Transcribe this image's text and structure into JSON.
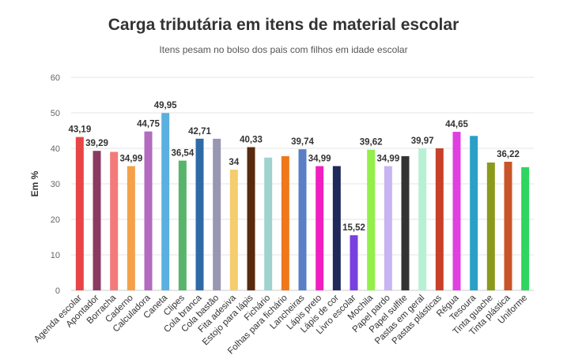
{
  "chart_data": {
    "type": "bar",
    "title": "Carga tributária em itens de material escolar",
    "subtitle": "Itens pesam no bolso dos pais com filhos em idade escolar",
    "xlabel": "",
    "ylabel": "Em %",
    "ylim": [
      0,
      60
    ],
    "yticks": [
      0,
      10,
      20,
      30,
      40,
      50,
      60
    ],
    "grid": true,
    "categories": [
      "Agenda escolar",
      "Apontador",
      "Borracha",
      "Caderno",
      "Calculadora",
      "Caneta",
      "Clipes",
      "Cola branca",
      "Cola bastão",
      "Fita adesiva",
      "Estojo para lápis",
      "Fichário",
      "Folhas para fichário",
      "Lancheiras",
      "Lápis preto",
      "Lápis de cor",
      "Livro escolar",
      "Mochila",
      "Papel pardo",
      "Papel sulfite",
      "Pastas em geral",
      "Pastas plásticas",
      "Régua",
      "Tesoura",
      "Tinta guache",
      "Tinta plástica",
      "Uniforme"
    ],
    "values": [
      43.19,
      39.29,
      39.0,
      34.99,
      44.75,
      49.95,
      36.54,
      42.71,
      42.7,
      34,
      40.33,
      37.4,
      37.8,
      39.74,
      34.99,
      35.0,
      15.52,
      39.62,
      34.99,
      37.8,
      39.97,
      40.0,
      44.65,
      43.5,
      36.0,
      36.22,
      34.7
    ],
    "data_labels": [
      "43,19",
      "39,29",
      "",
      "34,99",
      "44,75",
      "49,95",
      "36,54",
      "42,71",
      "",
      "34",
      "40,33",
      "",
      "",
      "39,74",
      "34,99",
      "",
      "15,52",
      "39,62",
      "34,99",
      "",
      "39,97",
      "",
      "44,65",
      "",
      "",
      "36,22",
      ""
    ],
    "colors": [
      "#e84646",
      "#8b3a62",
      "#f47a7a",
      "#f4a14a",
      "#b26bbf",
      "#5ab1e0",
      "#59b36a",
      "#2f6aa6",
      "#9797b4",
      "#f5cd6c",
      "#5a2a0e",
      "#9fd3cf",
      "#f0781a",
      "#5b7fc7",
      "#f01fc0",
      "#1f2a5a",
      "#7a3fe0",
      "#93f04a",
      "#c8b4f0",
      "#333333",
      "#b8f0d6",
      "#c8402a",
      "#e040e0",
      "#2aa0c8",
      "#8b9a1a",
      "#c8542a",
      "#2ed660"
    ]
  }
}
